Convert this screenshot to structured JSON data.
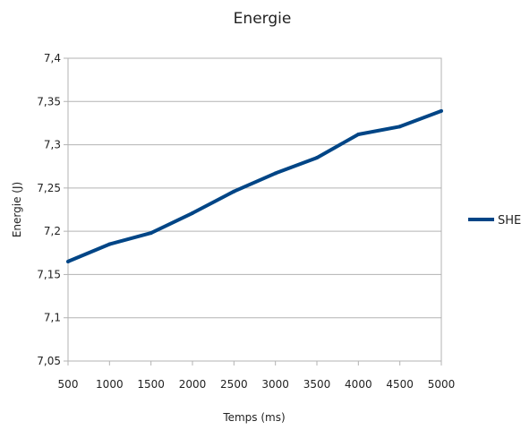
{
  "chart_data": {
    "type": "line",
    "title": "Energie",
    "xlabel": "Temps (ms)",
    "ylabel": "Energie (J)",
    "x": [
      500,
      1000,
      1500,
      2000,
      2500,
      3000,
      3500,
      4000,
      4500,
      5000
    ],
    "x_tick_labels": [
      "500",
      "1000",
      "1500",
      "2000",
      "2500",
      "3000",
      "3500",
      "4000",
      "4500",
      "5000"
    ],
    "ylim": [
      7.05,
      7.4
    ],
    "y_ticks": [
      7.05,
      7.1,
      7.15,
      7.2,
      7.25,
      7.3,
      7.35,
      7.4
    ],
    "y_tick_labels": [
      "7,05",
      "7,1",
      "7,15",
      "7,2",
      "7,25",
      "7,3",
      "7,35",
      "7,4"
    ],
    "grid": "horizontal",
    "legend_position": "right",
    "series": [
      {
        "name": "SHE",
        "color": "#004586",
        "values": [
          7.165,
          7.185,
          7.198,
          7.221,
          7.246,
          7.267,
          7.285,
          7.312,
          7.321,
          7.339
        ]
      }
    ]
  }
}
